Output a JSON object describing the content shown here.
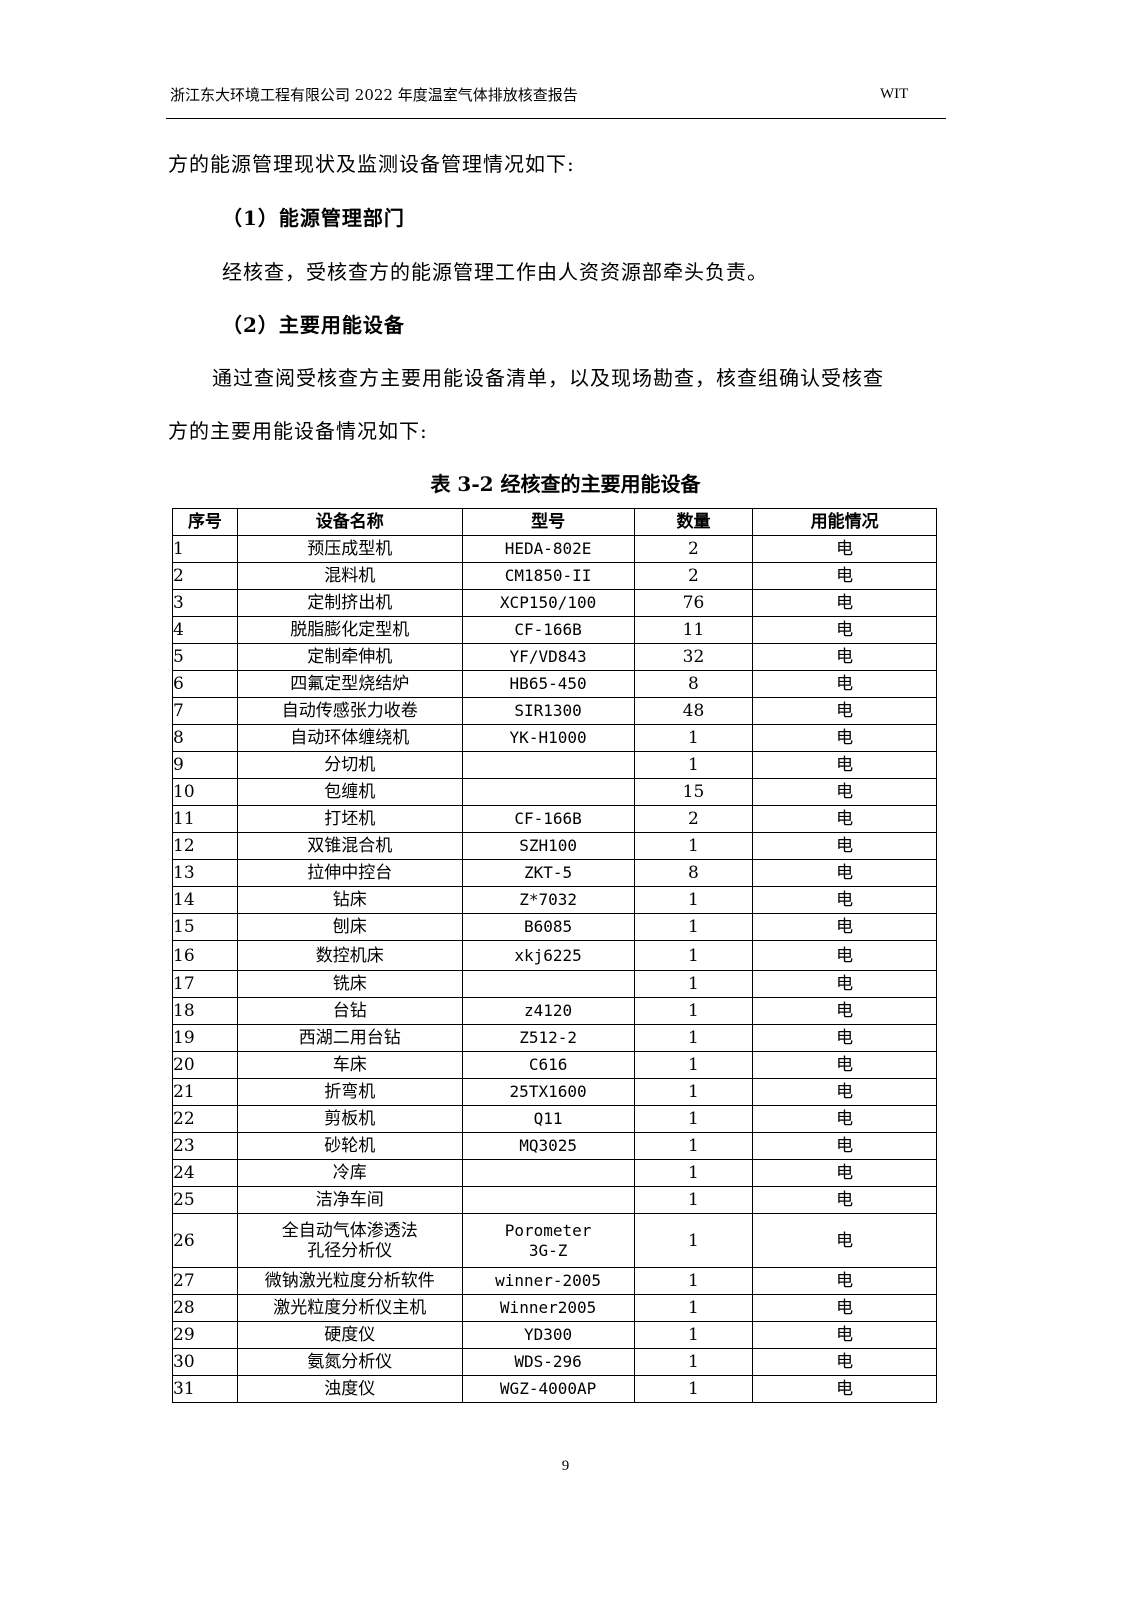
{
  "header": {
    "title": "浙江东大环境工程有限公司 2022 年度温室气体排放核查报告",
    "right": "WIT"
  },
  "body": {
    "p1": "方的能源管理现状及监测设备管理情况如下:",
    "h1": "（1）能源管理部门",
    "p2": "经核查，受核查方的能源管理工作由人资资源部牵头负责。",
    "h2": "（2）主要用能设备",
    "p3a": "通过查阅受核查方主要用能设备清单，以及现场勘查，核查组确认受核查",
    "p3b": "方的主要用能设备情况如下:"
  },
  "table": {
    "caption": "表 3-2  经核查的主要用能设备",
    "headers": [
      "序号",
      "设备名称",
      "型号",
      "数量",
      "用能情况"
    ],
    "rows": [
      [
        "1",
        "预压成型机",
        "HEDA-802E",
        "2",
        "电"
      ],
      [
        "2",
        "混料机",
        "CM1850-II",
        "2",
        "电"
      ],
      [
        "3",
        "定制挤出机",
        "XCP150/100",
        "76",
        "电"
      ],
      [
        "4",
        "脱脂膨化定型机",
        "CF-166B",
        "11",
        "电"
      ],
      [
        "5",
        "定制牵伸机",
        "YF/VD843",
        "32",
        "电"
      ],
      [
        "6",
        "四氟定型烧结炉",
        "HB65-450",
        "8",
        "电"
      ],
      [
        "7",
        "自动传感张力收卷",
        "SIR1300",
        "48",
        "电"
      ],
      [
        "8",
        "自动环体缠绕机",
        "YK-H1000",
        "1",
        "电"
      ],
      [
        "9",
        "分切机",
        "",
        "1",
        "电"
      ],
      [
        "10",
        "包缠机",
        "",
        "15",
        "电"
      ],
      [
        "11",
        "打坯机",
        "CF-166B",
        "2",
        "电"
      ],
      [
        "12",
        "双锥混合机",
        "SZH100",
        "1",
        "电"
      ],
      [
        "13",
        "拉伸中控台",
        "ZKT-5",
        "8",
        "电"
      ],
      [
        "14",
        "钻床",
        "Z*7032",
        "1",
        "电"
      ],
      [
        "15",
        "刨床",
        "B6085",
        "1",
        "电"
      ],
      [
        "16",
        "数控机床",
        "xkj6225",
        "1",
        "电"
      ],
      [
        "17",
        "铣床",
        "",
        "1",
        "电"
      ],
      [
        "18",
        "台钻",
        "z4120",
        "1",
        "电"
      ],
      [
        "19",
        "西湖二用台钻",
        "Z512-2",
        "1",
        "电"
      ],
      [
        "20",
        "车床",
        "C616",
        "1",
        "电"
      ],
      [
        "21",
        "折弯机",
        "25TX1600",
        "1",
        "电"
      ],
      [
        "22",
        "剪板机",
        "Q11",
        "1",
        "电"
      ],
      [
        "23",
        "砂轮机",
        "MQ3025",
        "1",
        "电"
      ],
      [
        "24",
        "冷库",
        "",
        "1",
        "电"
      ],
      [
        "25",
        "洁净车间",
        "",
        "1",
        "电"
      ],
      [
        "26",
        "全自动气体渗透法孔径分析仪",
        "Porometer 3G-Z",
        "1",
        "电"
      ],
      [
        "27",
        "微钠激光粒度分析软件",
        "winner-2005",
        "1",
        "电"
      ],
      [
        "28",
        "激光粒度分析仪主机",
        "Winner2005",
        "1",
        "电"
      ],
      [
        "29",
        "硬度仪",
        "YD300",
        "1",
        "电"
      ],
      [
        "30",
        "氨氮分析仪",
        "WDS-296",
        "1",
        "电"
      ],
      [
        "31",
        "浊度仪",
        "WGZ-4000AP",
        "1",
        "电"
      ]
    ]
  },
  "footer": {
    "page": "9"
  }
}
